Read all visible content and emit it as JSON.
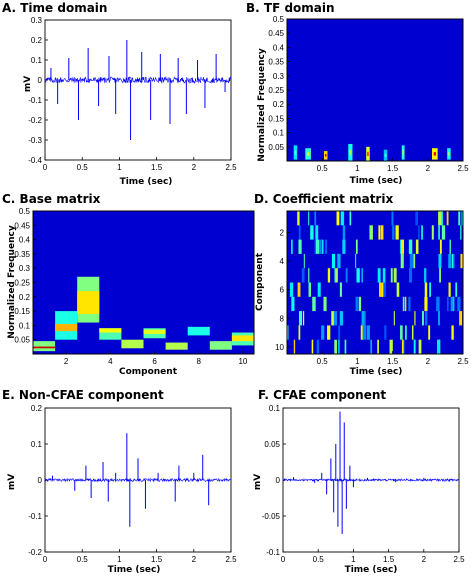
{
  "chart_data": [
    {
      "type": "line",
      "title": "A. Time domain",
      "xlabel": "Time (sec)",
      "ylabel": "mV",
      "xlim": [
        0,
        2.5
      ],
      "ylim": [
        -0.4,
        0.3
      ],
      "xticks": [
        "0",
        "0.5",
        "1",
        "1.5",
        "2",
        "2.5"
      ],
      "yticks": [
        "0.3",
        "0.2",
        "0.1",
        "0",
        "-0.1",
        "-0.2",
        "-0.3",
        "-0.4"
      ],
      "color": "#0000ff",
      "noise_amplitude": 0.015,
      "spikes": [
        {
          "x": 0.08,
          "y": 0.06
        },
        {
          "x": 0.17,
          "y": -0.12
        },
        {
          "x": 0.32,
          "y": 0.11
        },
        {
          "x": 0.45,
          "y": -0.2
        },
        {
          "x": 0.58,
          "y": 0.16
        },
        {
          "x": 0.72,
          "y": -0.13
        },
        {
          "x": 0.86,
          "y": 0.12
        },
        {
          "x": 0.95,
          "y": -0.17
        },
        {
          "x": 1.1,
          "y": 0.2
        },
        {
          "x": 1.15,
          "y": -0.3
        },
        {
          "x": 1.3,
          "y": 0.14
        },
        {
          "x": 1.42,
          "y": -0.2
        },
        {
          "x": 1.55,
          "y": 0.13
        },
        {
          "x": 1.68,
          "y": -0.22
        },
        {
          "x": 1.79,
          "y": 0.11
        },
        {
          "x": 1.9,
          "y": -0.17
        },
        {
          "x": 2.05,
          "y": 0.1
        },
        {
          "x": 2.15,
          "y": -0.14
        },
        {
          "x": 2.3,
          "y": 0.13
        },
        {
          "x": 2.42,
          "y": -0.06
        }
      ]
    },
    {
      "type": "heatmap",
      "title": "B. TF domain",
      "xlabel": "Time (sec)",
      "ylabel": "Normalized Frequency",
      "xlim": [
        0,
        2.5
      ],
      "ylim": [
        0,
        0.5
      ],
      "xticks": [
        "0.5",
        "1",
        "1.5",
        "2",
        "2.5"
      ],
      "yticks": [
        "0.5",
        "0.45",
        "0.4",
        "0.35",
        "0.3",
        "0.25",
        "0.2",
        "0.15",
        "0.1",
        "0.05"
      ],
      "colormap": "jet",
      "blobs": [
        {
          "x": 0.12,
          "y": 0.03,
          "w": 0.05,
          "h": 0.05,
          "v": 0.5
        },
        {
          "x": 0.3,
          "y": 0.025,
          "w": 0.08,
          "h": 0.04,
          "v": 0.6
        },
        {
          "x": 0.55,
          "y": 0.02,
          "w": 0.05,
          "h": 0.03,
          "v": 0.95
        },
        {
          "x": 0.9,
          "y": 0.03,
          "w": 0.06,
          "h": 0.06,
          "v": 0.55
        },
        {
          "x": 1.15,
          "y": 0.025,
          "w": 0.05,
          "h": 0.05,
          "v": 0.85
        },
        {
          "x": 1.4,
          "y": 0.02,
          "w": 0.05,
          "h": 0.04,
          "v": 0.45
        },
        {
          "x": 1.65,
          "y": 0.03,
          "w": 0.04,
          "h": 0.05,
          "v": 0.6
        },
        {
          "x": 2.1,
          "y": 0.025,
          "w": 0.08,
          "h": 0.04,
          "v": 0.9
        },
        {
          "x": 2.3,
          "y": 0.025,
          "w": 0.05,
          "h": 0.04,
          "v": 0.55
        }
      ]
    },
    {
      "type": "heatmap",
      "title": "C. Base matrix",
      "xlabel": "Component",
      "ylabel": "Normalized Frequency",
      "xlim": [
        0.5,
        10.5
      ],
      "ylim": [
        0,
        0.5
      ],
      "xticks": [
        "2",
        "4",
        "6",
        "8",
        "10"
      ],
      "yticks": [
        "0.5",
        "0.45",
        "0.4",
        "0.35",
        "0.3",
        "0.25",
        "0.2",
        "0.15",
        "0.1",
        "0.05"
      ],
      "colormap": "jet",
      "columns": [
        {
          "component": 1,
          "cells": [
            {
              "y": 0.01,
              "h": 0.035,
              "v": 0.5
            },
            {
              "y": 0.02,
              "h": 0.006,
              "v": 0.92
            }
          ]
        },
        {
          "component": 2,
          "cells": [
            {
              "y": 0.05,
              "h": 0.1,
              "v": 0.4
            },
            {
              "y": 0.08,
              "h": 0.025,
              "v": 0.7
            }
          ]
        },
        {
          "component": 3,
          "cells": [
            {
              "y": 0.11,
              "h": 0.16,
              "v": 0.5
            },
            {
              "y": 0.14,
              "h": 0.08,
              "v": 0.65
            }
          ]
        },
        {
          "component": 4,
          "cells": [
            {
              "y": 0.05,
              "h": 0.04,
              "v": 0.45
            },
            {
              "y": 0.075,
              "h": 0.015,
              "v": 0.62
            }
          ]
        },
        {
          "component": 5,
          "cells": [
            {
              "y": 0.02,
              "h": 0.03,
              "v": 0.55
            }
          ]
        },
        {
          "component": 6,
          "cells": [
            {
              "y": 0.055,
              "h": 0.035,
              "v": 0.45
            },
            {
              "y": 0.07,
              "h": 0.015,
              "v": 0.6
            }
          ]
        },
        {
          "component": 7,
          "cells": [
            {
              "y": 0.015,
              "h": 0.025,
              "v": 0.55
            }
          ]
        },
        {
          "component": 8,
          "cells": [
            {
              "y": 0.065,
              "h": 0.03,
              "v": 0.4
            }
          ]
        },
        {
          "component": 9,
          "cells": [
            {
              "y": 0.015,
              "h": 0.03,
              "v": 0.5
            }
          ]
        },
        {
          "component": 10,
          "cells": [
            {
              "y": 0.03,
              "h": 0.045,
              "v": 0.45
            },
            {
              "y": 0.045,
              "h": 0.02,
              "v": 0.65
            }
          ]
        }
      ]
    },
    {
      "type": "heatmap",
      "title": "D. Coefficient matrix",
      "xlabel": "Time (sec)",
      "ylabel": "Component",
      "xlim": [
        0,
        2.5
      ],
      "ylim": [
        0.5,
        10.5
      ],
      "xticks": [
        "0.5",
        "1",
        "1.5",
        "2",
        "2.5"
      ],
      "yticks": [
        "2",
        "4",
        "6",
        "8",
        "10"
      ],
      "colormap": "jet",
      "rows": 10,
      "stripes_per_row": 15,
      "max_level": 0.68
    },
    {
      "type": "line",
      "title": "E. Non-CFAE component",
      "xlabel": "Time (sec)",
      "ylabel": "mV",
      "xlim": [
        0,
        2.5
      ],
      "ylim": [
        -0.2,
        0.2
      ],
      "xticks": [
        "0",
        "0.5",
        "1",
        "1.5",
        "2",
        "2.5"
      ],
      "yticks": [
        "0.2",
        "0.1",
        "0",
        "-0.1",
        "-0.2"
      ],
      "color": "#0000ff",
      "noise_amplitude": 0.004,
      "spikes": [
        {
          "x": 0.1,
          "y": 0.012
        },
        {
          "x": 0.4,
          "y": -0.03
        },
        {
          "x": 0.55,
          "y": 0.04
        },
        {
          "x": 0.62,
          "y": -0.05
        },
        {
          "x": 0.78,
          "y": 0.05
        },
        {
          "x": 0.85,
          "y": -0.06
        },
        {
          "x": 0.95,
          "y": 0.02
        },
        {
          "x": 1.1,
          "y": 0.13
        },
        {
          "x": 1.14,
          "y": -0.13
        },
        {
          "x": 1.25,
          "y": 0.06
        },
        {
          "x": 1.35,
          "y": -0.08
        },
        {
          "x": 1.52,
          "y": 0.02
        },
        {
          "x": 1.75,
          "y": -0.06
        },
        {
          "x": 1.8,
          "y": 0.04
        },
        {
          "x": 2.0,
          "y": 0.02
        },
        {
          "x": 2.12,
          "y": 0.07
        },
        {
          "x": 2.2,
          "y": -0.07
        }
      ]
    },
    {
      "type": "line",
      "title": "F. CFAE component",
      "xlabel": "Time (sec)",
      "ylabel": "mV",
      "xlim": [
        0,
        2.5
      ],
      "ylim": [
        -0.1,
        0.1
      ],
      "xticks": [
        "0",
        "0.5",
        "1",
        "1.5",
        "2",
        "2.5"
      ],
      "yticks": [
        "0.1",
        "0.05",
        "0",
        "-0.05",
        "-0.1"
      ],
      "color": "#0000ff",
      "noise_amplitude": 0.0015,
      "spikes": [
        {
          "x": 0.15,
          "y": 0.004
        },
        {
          "x": 0.45,
          "y": -0.004
        },
        {
          "x": 0.55,
          "y": 0.01
        },
        {
          "x": 0.62,
          "y": -0.02
        },
        {
          "x": 0.68,
          "y": 0.03
        },
        {
          "x": 0.72,
          "y": -0.045
        },
        {
          "x": 0.75,
          "y": 0.05
        },
        {
          "x": 0.78,
          "y": -0.065
        },
        {
          "x": 0.81,
          "y": 0.095
        },
        {
          "x": 0.84,
          "y": -0.075
        },
        {
          "x": 0.87,
          "y": 0.08
        },
        {
          "x": 0.9,
          "y": -0.04
        },
        {
          "x": 0.95,
          "y": 0.02
        },
        {
          "x": 1.0,
          "y": -0.01
        },
        {
          "x": 1.2,
          "y": 0.003
        },
        {
          "x": 1.6,
          "y": -0.003
        },
        {
          "x": 2.0,
          "y": 0.003
        }
      ]
    }
  ]
}
